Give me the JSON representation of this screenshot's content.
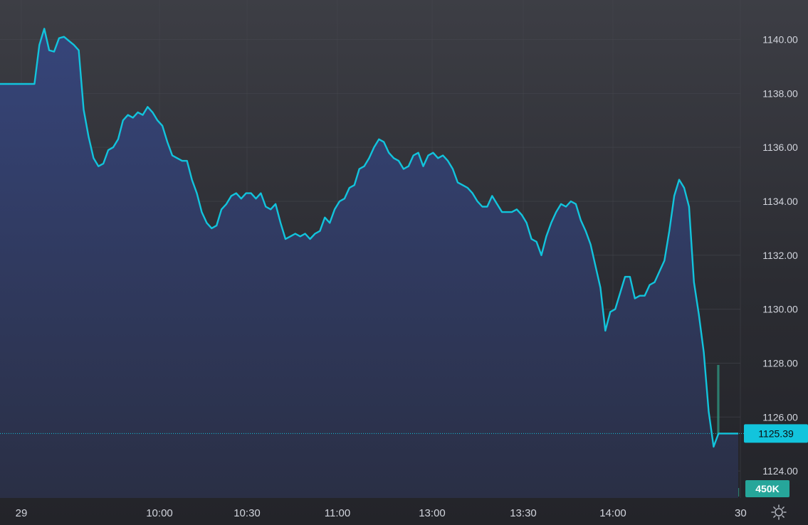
{
  "colors": {
    "line": "#12c4dc",
    "area_top": "#36457a",
    "area_bottom": "#2a2f45",
    "grid": "#474850",
    "price_badge": "#12c4dc",
    "volume_badge": "#26a69a",
    "volume_up": "#2e8c79",
    "volume_down": "#b5485a"
  },
  "chart_data": {
    "type": "area",
    "y_axis": {
      "ticks": [
        "1140.00",
        "1138.00",
        "1136.00",
        "1134.00",
        "1132.00",
        "1130.00",
        "1128.00",
        "1126.00",
        "1124.00"
      ],
      "range": [
        1123.0,
        1141.2
      ],
      "position": "right"
    },
    "x_axis": {
      "ticks": [
        "29",
        "10:00",
        "10:30",
        "11:00",
        "13:00",
        "13:30",
        "14:00",
        "30"
      ]
    },
    "current_price": {
      "value": 1125.39,
      "label": "1125.39"
    },
    "volume_label": "450K",
    "series": [
      {
        "values": [
          1138.35,
          1138.35,
          1138.35,
          1138.35,
          1138.35,
          1138.35,
          1138.35,
          1138.35,
          1139.8,
          1140.4,
          1139.6,
          1139.55,
          1140.05,
          1140.1,
          1139.95,
          1139.8,
          1139.6,
          1137.4,
          1136.4,
          1135.6,
          1135.3,
          1135.4,
          1135.9,
          1136.0,
          1136.3,
          1137.0,
          1137.2,
          1137.1,
          1137.3,
          1137.2,
          1137.5,
          1137.3,
          1137.0,
          1136.8,
          1136.2,
          1135.7,
          1135.6,
          1135.5,
          1135.5,
          1134.8,
          1134.3,
          1133.6,
          1133.2,
          1133.0,
          1133.1,
          1133.7,
          1133.9,
          1134.2,
          1134.3,
          1134.1,
          1134.3,
          1134.3,
          1134.1,
          1134.3,
          1133.8,
          1133.7,
          1133.9,
          1133.2,
          1132.6,
          1132.7,
          1132.8,
          1132.7,
          1132.8,
          1132.6,
          1132.8,
          1132.9,
          1133.4,
          1133.2,
          1133.7,
          1134.0,
          1134.1,
          1134.5,
          1134.6,
          1135.2,
          1135.3,
          1135.6,
          1136.0,
          1136.3,
          1136.2,
          1135.8,
          1135.6,
          1135.5,
          1135.2,
          1135.3,
          1135.7,
          1135.8,
          1135.3,
          1135.7,
          1135.8,
          1135.6,
          1135.7,
          1135.5,
          1135.2,
          1134.7,
          1134.6,
          1134.5,
          1134.3,
          1134.0,
          1133.8,
          1133.8,
          1134.2,
          1133.9,
          1133.6,
          1133.6,
          1133.6,
          1133.7,
          1133.5,
          1133.2,
          1132.6,
          1132.5,
          1132.0,
          1132.7,
          1133.2,
          1133.6,
          1133.9,
          1133.8,
          1134.0,
          1133.9,
          1133.3,
          1132.9,
          1132.4,
          1131.6,
          1130.8,
          1129.2,
          1129.9,
          1130.0,
          1130.6,
          1131.2,
          1131.2,
          1130.4,
          1130.5,
          1130.5,
          1130.9,
          1131.0,
          1131.4,
          1131.8,
          1132.9,
          1134.2,
          1134.8,
          1134.5,
          1133.8,
          1131.0,
          1129.8,
          1128.4,
          1126.2,
          1124.9,
          1125.39,
          1125.39,
          1125.39,
          1125.39,
          1125.39
        ]
      }
    ]
  }
}
